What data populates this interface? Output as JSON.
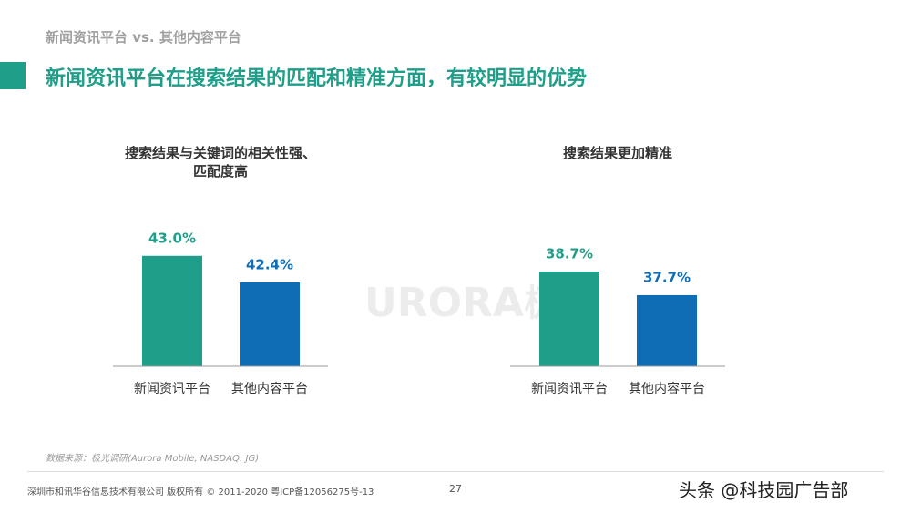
{
  "header": {
    "subtitle": "新闻资讯平台 vs. 其他内容平台",
    "title": "新闻资讯平台在搜索结果的匹配和精准方面，有较明显的优势"
  },
  "chart_data": [
    {
      "type": "bar",
      "title": "搜索结果与关键词的相关性强、匹配度高",
      "categories": [
        "新闻资讯平台",
        "其他内容平台"
      ],
      "values": [
        43.0,
        42.4
      ],
      "value_labels": [
        "43.0%",
        "42.4%"
      ],
      "colors": [
        "#1f9e8a",
        "#0e6db5"
      ],
      "ylim": [
        40.5,
        43.8
      ]
    },
    {
      "type": "bar",
      "title": "搜索结果更加精准",
      "categories": [
        "新闻资讯平台",
        "其他内容平台"
      ],
      "values": [
        38.7,
        37.7
      ],
      "value_labels": [
        "38.7%",
        "37.7%"
      ],
      "colors": [
        "#1f9e8a",
        "#0e6db5"
      ],
      "ylim": [
        34.7,
        40.85
      ]
    }
  ],
  "watermark": {
    "logo": "URORA",
    "logo_cn": "极光",
    "credit": "头条 @科技园广告部"
  },
  "source": "数据来源：极光调研(Aurora Mobile, NASDAQ: JG)",
  "footer": {
    "copyright": "深圳市和讯华谷信息技术有限公司 版权所有 © 2011-2020 粤ICP备12056275号-13",
    "page": "27"
  }
}
